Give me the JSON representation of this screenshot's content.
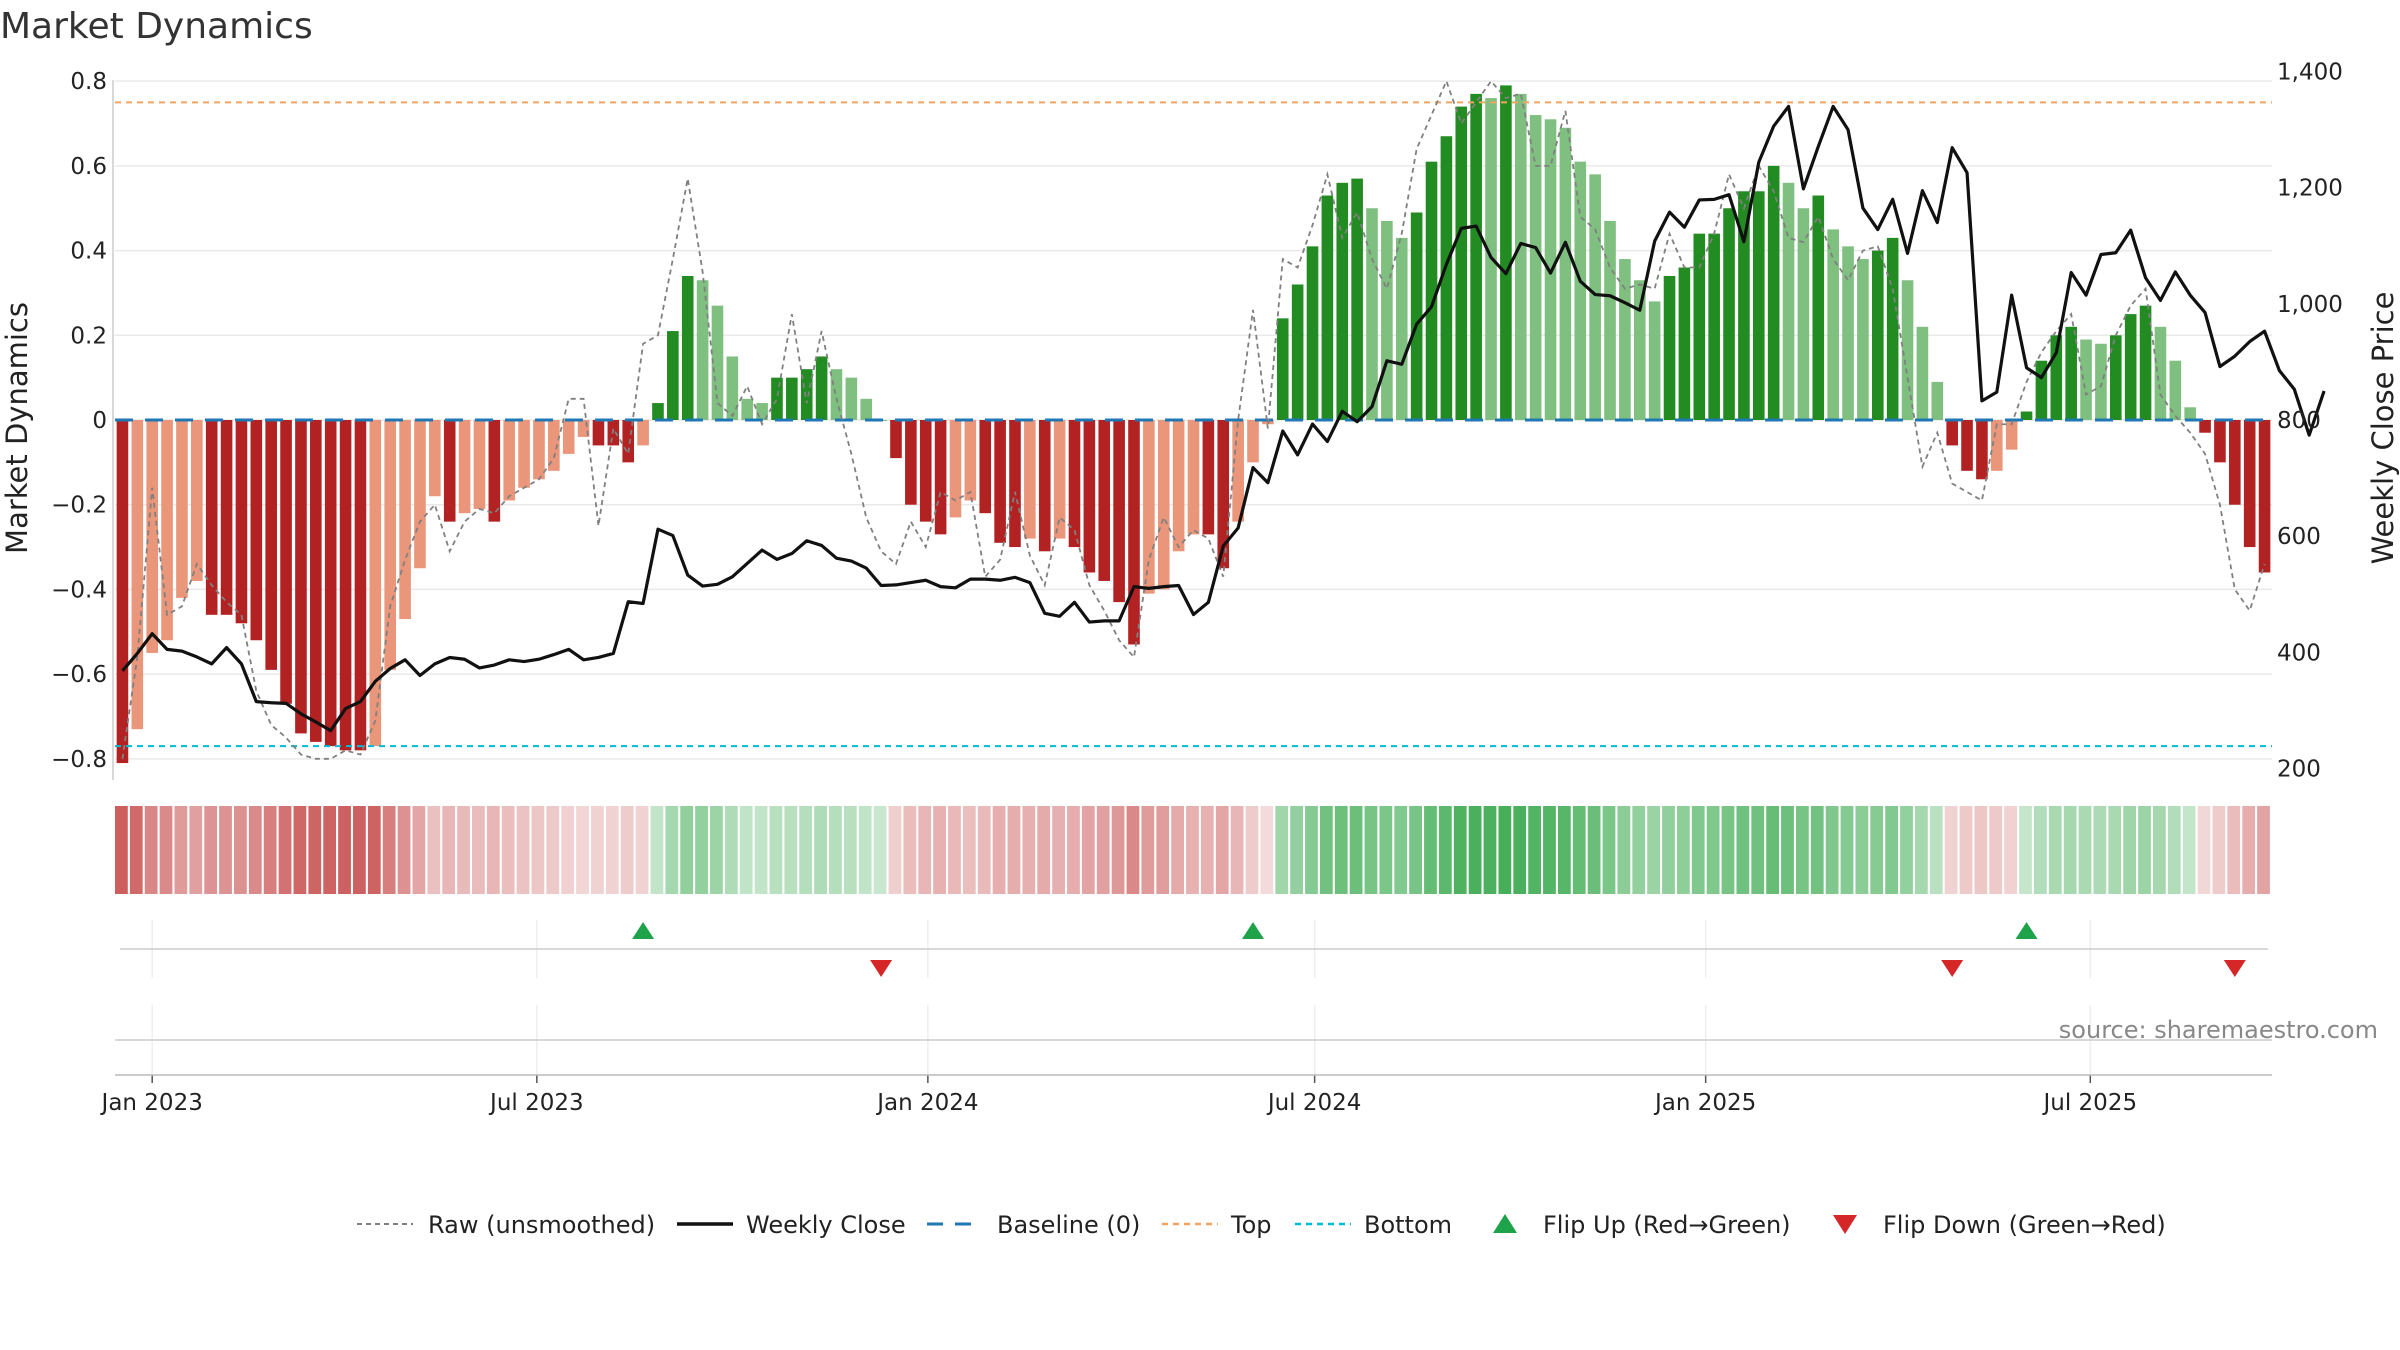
{
  "chart_data": {
    "type": "bar",
    "title": "Market Dynamics",
    "ylabel": "Market Dynamics",
    "y2label": "Weekly Close Price",
    "ylim": [
      -0.85,
      0.85
    ],
    "y2lim": [
      180,
      1420
    ],
    "yticks": [
      "0.8",
      "0.6",
      "0.4",
      "0.2",
      "0",
      "−0.2",
      "−0.4",
      "−0.6",
      "−0.8"
    ],
    "yticks_values": [
      0.8,
      0.6,
      0.4,
      0.2,
      0,
      -0.2,
      -0.4,
      -0.6,
      -0.8
    ],
    "y2ticks": [
      "1,400",
      "1,200",
      "1,000",
      "800",
      "600",
      "400",
      "200"
    ],
    "y2ticks_values": [
      1400,
      1200,
      1000,
      800,
      600,
      400,
      200
    ],
    "xticks": [
      "Jan 2023",
      "Jul 2023",
      "Jan 2024",
      "Jul 2024",
      "Jan 2025",
      "Jul 2025"
    ],
    "xticks_dates": [
      "2023-01-01",
      "2023-07-01",
      "2024-01-01",
      "2024-07-01",
      "2025-01-01",
      "2025-07-01"
    ],
    "start_date": "2022-12-18",
    "series": [
      {
        "name": "Market Dynamics",
        "values": [
          -0.81,
          -0.73,
          -0.55,
          -0.52,
          -0.42,
          -0.38,
          -0.46,
          -0.46,
          -0.48,
          -0.52,
          -0.59,
          -0.67,
          -0.74,
          -0.76,
          -0.77,
          -0.78,
          -0.78,
          -0.77,
          -0.59,
          -0.47,
          -0.35,
          -0.18,
          -0.24,
          -0.22,
          -0.21,
          -0.24,
          -0.19,
          -0.16,
          -0.14,
          -0.12,
          -0.08,
          -0.04,
          -0.06,
          -0.06,
          -0.1,
          -0.06,
          0.04,
          0.21,
          0.34,
          0.33,
          0.27,
          0.15,
          0.05,
          0.04,
          0.1,
          0.1,
          0.12,
          0.15,
          0.12,
          0.1,
          0.05,
          0.0,
          -0.09,
          -0.2,
          -0.24,
          -0.27,
          -0.23,
          -0.19,
          -0.22,
          -0.29,
          -0.3,
          -0.28,
          -0.31,
          -0.28,
          -0.3,
          -0.36,
          -0.38,
          -0.43,
          -0.53,
          -0.41,
          -0.4,
          -0.31,
          -0.27,
          -0.27,
          -0.35,
          -0.24,
          -0.1,
          -0.01,
          0.24,
          0.32,
          0.41,
          0.53,
          0.56,
          0.57,
          0.5,
          0.47,
          0.43,
          0.49,
          0.61,
          0.67,
          0.74,
          0.77,
          0.76,
          0.79,
          0.77,
          0.72,
          0.71,
          0.69,
          0.61,
          0.58,
          0.47,
          0.38,
          0.33,
          0.28,
          0.34,
          0.36,
          0.44,
          0.44,
          0.5,
          0.54,
          0.54,
          0.6,
          0.56,
          0.5,
          0.53,
          0.45,
          0.41,
          0.38,
          0.4,
          0.43,
          0.33,
          0.22,
          0.09,
          -0.06,
          -0.12,
          -0.14,
          -0.12,
          -0.07,
          0.02,
          0.14,
          0.2,
          0.22,
          0.19,
          0.18,
          0.2,
          0.25,
          0.27,
          0.22,
          0.14,
          0.03,
          -0.03,
          -0.1,
          -0.2,
          -0.3,
          -0.36
        ]
      },
      {
        "name": "Raw (unsmoothed)",
        "values": [
          -0.8,
          -0.56,
          -0.16,
          -0.46,
          -0.44,
          -0.34,
          -0.39,
          -0.43,
          -0.46,
          -0.64,
          -0.72,
          -0.75,
          -0.79,
          -0.8,
          -0.8,
          -0.78,
          -0.79,
          -0.71,
          -0.44,
          -0.33,
          -0.24,
          -0.2,
          -0.31,
          -0.24,
          -0.21,
          -0.22,
          -0.18,
          -0.16,
          -0.14,
          -0.09,
          0.05,
          0.05,
          -0.25,
          -0.02,
          -0.08,
          0.18,
          0.2,
          0.38,
          0.57,
          0.35,
          0.04,
          0.01,
          0.08,
          -0.01,
          0.05,
          0.25,
          0.04,
          0.21,
          0.05,
          -0.08,
          -0.23,
          -0.31,
          -0.34,
          -0.24,
          -0.3,
          -0.17,
          -0.19,
          -0.17,
          -0.37,
          -0.33,
          -0.17,
          -0.32,
          -0.39,
          -0.23,
          -0.26,
          -0.39,
          -0.45,
          -0.52,
          -0.56,
          -0.33,
          -0.23,
          -0.3,
          -0.26,
          -0.28,
          -0.37,
          0.0,
          0.26,
          -0.02,
          0.38,
          0.36,
          0.46,
          0.58,
          0.43,
          0.49,
          0.38,
          0.31,
          0.44,
          0.64,
          0.72,
          0.8,
          0.7,
          0.75,
          0.8,
          0.76,
          0.77,
          0.6,
          0.6,
          0.73,
          0.48,
          0.45,
          0.36,
          0.31,
          0.32,
          0.31,
          0.44,
          0.36,
          0.36,
          0.44,
          0.58,
          0.5,
          0.6,
          0.54,
          0.43,
          0.42,
          0.48,
          0.38,
          0.33,
          0.4,
          0.41,
          0.31,
          0.1,
          -0.11,
          -0.03,
          -0.15,
          -0.17,
          -0.19,
          -0.01,
          -0.01,
          0.09,
          0.16,
          0.21,
          0.25,
          0.06,
          0.08,
          0.2,
          0.27,
          0.31,
          0.06,
          0.01,
          -0.03,
          -0.08,
          -0.2,
          -0.4,
          -0.45,
          -0.34
        ]
      },
      {
        "name": "Weekly Close",
        "values": [
          368,
          398,
          432,
          405,
          402,
          392,
          380,
          408,
          380,
          315,
          313,
          312,
          294,
          280,
          265,
          303,
          315,
          350,
          372,
          387,
          360,
          380,
          391,
          388,
          373,
          378,
          387,
          384,
          388,
          396,
          405,
          387,
          391,
          398,
          487,
          484,
          612,
          601,
          533,
          514,
          517,
          530,
          553,
          576,
          560,
          570,
          592,
          584,
          562,
          557,
          545,
          515,
          516,
          520,
          524,
          513,
          511,
          526,
          526,
          524,
          529,
          520,
          467,
          462,
          486,
          452,
          454,
          454,
          513,
          510,
          513,
          515,
          465,
          486,
          583,
          614,
          718,
          692,
          781,
          740,
          793,
          763,
          815,
          797,
          823,
          902,
          896,
          965,
          995,
          1068,
          1130,
          1134,
          1080,
          1052,
          1104,
          1097,
          1053,
          1106,
          1039,
          1016,
          1014,
          1002,
          989,
          1108,
          1158,
          1132,
          1179,
          1180,
          1188,
          1107,
          1244,
          1306,
          1340,
          1198,
          1271,
          1340,
          1300,
          1165,
          1128,
          1180,
          1087,
          1195,
          1140,
          1269,
          1226,
          833,
          848,
          1015,
          890,
          873,
          916,
          1054,
          1015,
          1085,
          1088,
          1127,
          1045,
          1006,
          1055,
          1015,
          985,
          892,
          910,
          935,
          953,
          885,
          853,
          774,
          850
        ]
      }
    ],
    "reference_lines": [
      {
        "name": "Baseline (0)",
        "value": 0
      },
      {
        "name": "Top",
        "value": 0.75
      },
      {
        "name": "Bottom",
        "value": -0.77
      }
    ],
    "flips_up_weeks": [
      35,
      76,
      128
    ],
    "flips_down_weeks": [
      51,
      123,
      142
    ],
    "legend": [
      "Raw (unsmoothed)",
      "Weekly Close",
      "Baseline (0)",
      "Top",
      "Bottom",
      "Flip Up (Red→Green)",
      "Flip Down (Green→Red)"
    ],
    "legend_position": "bottom",
    "grid": true,
    "source": "source: sharemaestro.com"
  },
  "colors": {
    "pos_strong": "#228b22",
    "pos_light": "#7fbf7f",
    "neg_strong": "#b22222",
    "neg_light": "#e9967a",
    "raw_line": "#808080",
    "close_line": "#111111",
    "baseline": "#1f77b4",
    "top": "#f4a460",
    "bottom": "#00bcd4",
    "flip_up": "#1fa34a",
    "flip_down": "#d62728"
  }
}
